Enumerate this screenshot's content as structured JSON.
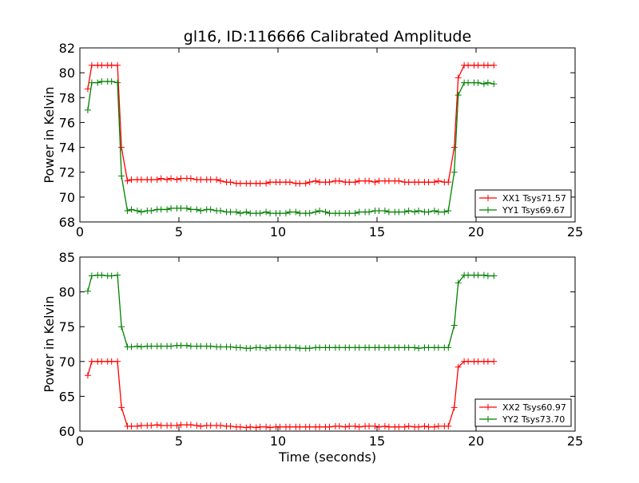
{
  "figure": {
    "title": "gl16, ID:116666 Calibrated Amplitude",
    "xlabel": "Time (seconds)"
  },
  "chart_data": [
    {
      "type": "line",
      "title": "gl16, ID:116666 Calibrated Amplitude",
      "xlabel": "",
      "ylabel": "Power in Kelvin",
      "xlim": [
        0,
        25
      ],
      "ylim": [
        68,
        82
      ],
      "xticks": [
        0,
        5,
        10,
        15,
        20,
        25
      ],
      "yticks": [
        68,
        70,
        72,
        74,
        76,
        78,
        80,
        82
      ],
      "grid": false,
      "legend": "lower-right",
      "x": [
        0.4,
        0.6,
        0.9,
        1.1,
        1.4,
        1.6,
        1.9,
        2.1,
        2.4,
        2.6,
        2.9,
        3.1,
        3.4,
        3.6,
        3.9,
        4.1,
        4.4,
        4.6,
        4.9,
        5.1,
        5.4,
        5.6,
        5.9,
        6.1,
        6.4,
        6.6,
        6.9,
        7.1,
        7.4,
        7.6,
        7.9,
        8.1,
        8.4,
        8.6,
        8.9,
        9.1,
        9.4,
        9.6,
        9.9,
        10.1,
        10.4,
        10.6,
        10.9,
        11.1,
        11.4,
        11.6,
        11.9,
        12.1,
        12.4,
        12.6,
        12.9,
        13.1,
        13.4,
        13.6,
        13.9,
        14.1,
        14.4,
        14.6,
        14.9,
        15.1,
        15.4,
        15.6,
        15.9,
        16.1,
        16.4,
        16.6,
        16.9,
        17.1,
        17.4,
        17.6,
        17.9,
        18.1,
        18.4,
        18.6,
        18.9,
        19.1,
        19.4,
        19.6,
        19.9,
        20.1,
        20.4,
        20.6,
        20.9
      ],
      "series": [
        {
          "name": "XX1 Tsys71.57",
          "color": "#ff0000",
          "values": [
            78.7,
            80.6,
            80.6,
            80.6,
            80.6,
            80.6,
            80.6,
            74.0,
            71.3,
            71.4,
            71.4,
            71.4,
            71.4,
            71.4,
            71.4,
            71.5,
            71.4,
            71.5,
            71.4,
            71.5,
            71.5,
            71.5,
            71.4,
            71.4,
            71.4,
            71.4,
            71.4,
            71.3,
            71.2,
            71.2,
            71.1,
            71.1,
            71.1,
            71.1,
            71.1,
            71.1,
            71.1,
            71.2,
            71.2,
            71.2,
            71.2,
            71.2,
            71.1,
            71.1,
            71.1,
            71.2,
            71.3,
            71.2,
            71.2,
            71.2,
            71.3,
            71.3,
            71.2,
            71.2,
            71.2,
            71.3,
            71.3,
            71.3,
            71.2,
            71.3,
            71.3,
            71.3,
            71.3,
            71.3,
            71.2,
            71.2,
            71.2,
            71.2,
            71.2,
            71.2,
            71.2,
            71.3,
            71.2,
            71.2,
            74.0,
            79.6,
            80.6,
            80.6,
            80.6,
            80.6,
            80.6,
            80.6,
            80.6
          ]
        },
        {
          "name": "YY1 Tsys69.67",
          "color": "#008000",
          "values": [
            77.0,
            79.2,
            79.2,
            79.3,
            79.3,
            79.3,
            79.2,
            71.7,
            68.9,
            69.0,
            68.9,
            68.8,
            68.9,
            68.9,
            69.0,
            69.0,
            69.0,
            69.1,
            69.1,
            69.1,
            69.1,
            69.0,
            69.0,
            68.9,
            69.0,
            69.0,
            68.9,
            68.9,
            68.8,
            68.8,
            68.8,
            68.7,
            68.8,
            68.7,
            68.7,
            68.7,
            68.8,
            68.7,
            68.7,
            68.7,
            68.7,
            68.8,
            68.8,
            68.7,
            68.7,
            68.7,
            68.8,
            68.9,
            68.8,
            68.7,
            68.7,
            68.7,
            68.7,
            68.7,
            68.7,
            68.8,
            68.8,
            68.8,
            68.9,
            68.9,
            68.9,
            68.8,
            68.8,
            68.8,
            68.8,
            68.9,
            68.8,
            68.9,
            68.8,
            68.8,
            68.9,
            68.8,
            68.8,
            68.9,
            72.0,
            78.2,
            79.2,
            79.2,
            79.2,
            79.2,
            79.1,
            79.2,
            79.1
          ]
        }
      ]
    },
    {
      "type": "line",
      "title": "",
      "xlabel": "Time (seconds)",
      "ylabel": "Power in Kelvin",
      "xlim": [
        0,
        25
      ],
      "ylim": [
        60,
        85
      ],
      "xticks": [
        0,
        5,
        10,
        15,
        20,
        25
      ],
      "yticks": [
        60,
        65,
        70,
        75,
        80,
        85
      ],
      "grid": false,
      "legend": "lower-right",
      "x": [
        0.4,
        0.6,
        0.9,
        1.1,
        1.4,
        1.6,
        1.9,
        2.1,
        2.4,
        2.6,
        2.9,
        3.1,
        3.4,
        3.6,
        3.9,
        4.1,
        4.4,
        4.6,
        4.9,
        5.1,
        5.4,
        5.6,
        5.9,
        6.1,
        6.4,
        6.6,
        6.9,
        7.1,
        7.4,
        7.6,
        7.9,
        8.1,
        8.4,
        8.6,
        8.9,
        9.1,
        9.4,
        9.6,
        9.9,
        10.1,
        10.4,
        10.6,
        10.9,
        11.1,
        11.4,
        11.6,
        11.9,
        12.1,
        12.4,
        12.6,
        12.9,
        13.1,
        13.4,
        13.6,
        13.9,
        14.1,
        14.4,
        14.6,
        14.9,
        15.1,
        15.4,
        15.6,
        15.9,
        16.1,
        16.4,
        16.6,
        16.9,
        17.1,
        17.4,
        17.6,
        17.9,
        18.1,
        18.4,
        18.6,
        18.9,
        19.1,
        19.4,
        19.6,
        19.9,
        20.1,
        20.4,
        20.6,
        20.9
      ],
      "series": [
        {
          "name": "XX2 Tsys60.97",
          "color": "#ff0000",
          "values": [
            68.0,
            70.0,
            70.0,
            70.0,
            70.0,
            70.0,
            70.0,
            63.4,
            60.7,
            60.7,
            60.7,
            60.8,
            60.8,
            60.8,
            60.9,
            60.8,
            60.8,
            60.8,
            60.8,
            60.9,
            60.9,
            60.9,
            60.8,
            60.7,
            60.8,
            60.8,
            60.8,
            60.8,
            60.7,
            60.7,
            60.6,
            60.6,
            60.5,
            60.6,
            60.5,
            60.6,
            60.6,
            60.5,
            60.6,
            60.6,
            60.6,
            60.6,
            60.6,
            60.6,
            60.6,
            60.6,
            60.6,
            60.6,
            60.6,
            60.6,
            60.7,
            60.7,
            60.6,
            60.7,
            60.7,
            60.6,
            60.7,
            60.7,
            60.7,
            60.6,
            60.7,
            60.6,
            60.6,
            60.6,
            60.6,
            60.7,
            60.6,
            60.6,
            60.7,
            60.6,
            60.6,
            60.7,
            60.7,
            60.7,
            63.4,
            69.2,
            70.0,
            70.0,
            70.0,
            70.0,
            70.0,
            70.0,
            70.0
          ]
        },
        {
          "name": "YY2 Tsys73.70",
          "color": "#008000",
          "values": [
            80.1,
            82.3,
            82.4,
            82.4,
            82.3,
            82.3,
            82.4,
            75.0,
            72.1,
            72.1,
            72.2,
            72.1,
            72.2,
            72.2,
            72.2,
            72.2,
            72.2,
            72.2,
            72.3,
            72.3,
            72.3,
            72.2,
            72.2,
            72.2,
            72.2,
            72.2,
            72.1,
            72.1,
            72.1,
            72.1,
            72.0,
            72.0,
            71.9,
            71.9,
            72.0,
            72.0,
            71.9,
            72.0,
            72.0,
            72.0,
            72.0,
            72.0,
            72.0,
            71.9,
            71.9,
            71.9,
            72.0,
            72.0,
            72.0,
            72.0,
            72.0,
            72.0,
            72.0,
            72.0,
            72.0,
            72.0,
            72.0,
            72.0,
            72.0,
            72.0,
            72.0,
            72.0,
            72.0,
            72.0,
            72.0,
            72.0,
            72.0,
            71.9,
            72.0,
            72.0,
            72.0,
            72.0,
            72.0,
            72.0,
            75.2,
            81.3,
            82.4,
            82.4,
            82.4,
            82.4,
            82.4,
            82.3,
            82.3
          ]
        }
      ]
    }
  ]
}
